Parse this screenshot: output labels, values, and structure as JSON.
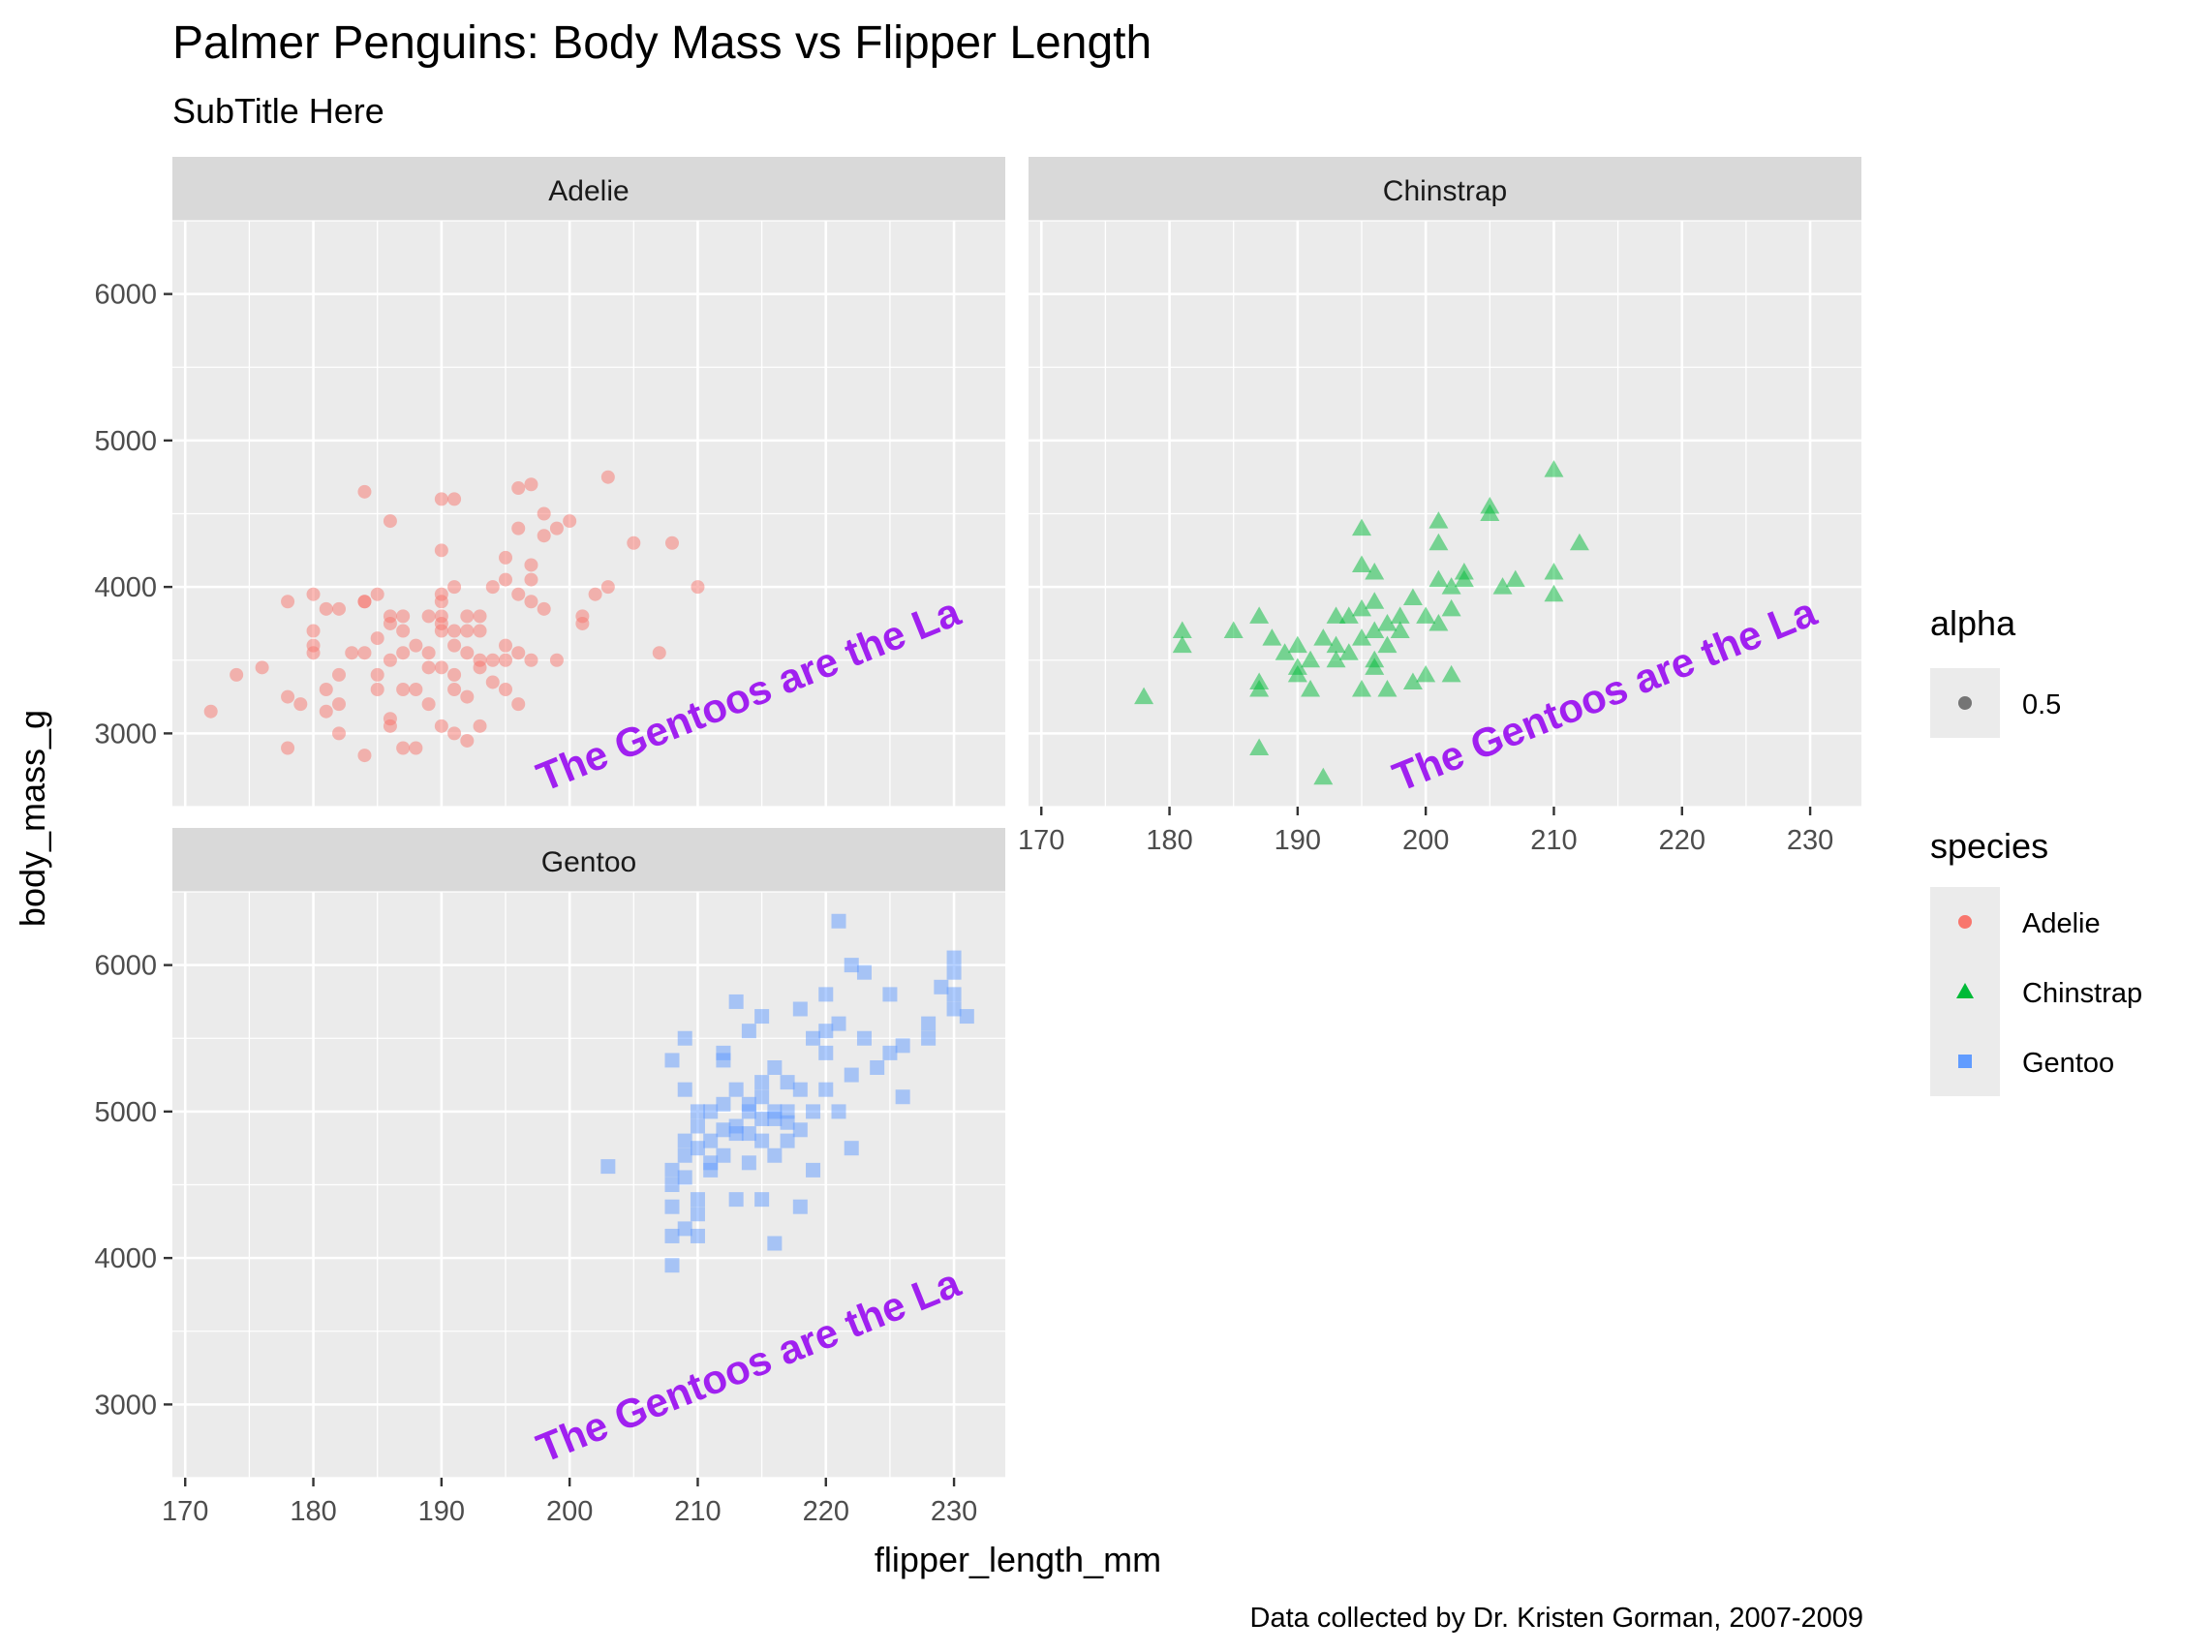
{
  "title": "Palmer Penguins: Body Mass vs Flipper Length",
  "subtitle": "SubTitle Here",
  "caption": "Data collected by Dr. Kristen Gorman, 2007-2009",
  "annotation": {
    "text": "The Gentoos are the La",
    "color": "#a020f0",
    "x": 198,
    "y": 2600,
    "angle_deg": 22
  },
  "legend": {
    "alpha": {
      "title": "alpha",
      "label": "0.5"
    },
    "species": {
      "title": "species",
      "items": [
        {
          "label": "Adelie",
          "color": "#f8766d",
          "shape": "circle"
        },
        {
          "label": "Chinstrap",
          "color": "#00ba38",
          "shape": "triangle"
        },
        {
          "label": "Gentoo",
          "color": "#619cff",
          "shape": "square"
        }
      ]
    }
  },
  "chart_data": {
    "type": "scatter",
    "xlabel": "flipper_length_mm",
    "ylabel": "body_mass_g",
    "xlim": [
      169,
      234
    ],
    "ylim": [
      2500,
      6500
    ],
    "x_ticks": [
      170,
      180,
      190,
      200,
      210,
      220,
      230
    ],
    "y_ticks": [
      3000,
      4000,
      5000,
      6000
    ],
    "point_alpha": 0.5,
    "grid": true,
    "legend_position": "right",
    "facets": [
      {
        "name": "Adelie",
        "color": "#f8766d",
        "shape": "circle",
        "points": [
          [
            172,
            3150
          ],
          [
            174,
            3400
          ],
          [
            176,
            3450
          ],
          [
            178,
            3250
          ],
          [
            178,
            3900
          ],
          [
            178,
            2900
          ],
          [
            179,
            3200
          ],
          [
            180,
            3550
          ],
          [
            180,
            3950
          ],
          [
            180,
            3700
          ],
          [
            180,
            3600
          ],
          [
            181,
            3300
          ],
          [
            181,
            3850
          ],
          [
            181,
            3150
          ],
          [
            182,
            3200
          ],
          [
            182,
            3850
          ],
          [
            182,
            3000
          ],
          [
            182,
            3400
          ],
          [
            183,
            3550
          ],
          [
            184,
            3550
          ],
          [
            184,
            3900
          ],
          [
            184,
            3900
          ],
          [
            184,
            4650
          ],
          [
            184,
            2850
          ],
          [
            185,
            3950
          ],
          [
            185,
            3400
          ],
          [
            185,
            3650
          ],
          [
            185,
            3300
          ],
          [
            186,
            3500
          ],
          [
            186,
            3750
          ],
          [
            186,
            3100
          ],
          [
            186,
            3800
          ],
          [
            186,
            3050
          ],
          [
            186,
            4450
          ],
          [
            187,
            3800
          ],
          [
            187,
            3550
          ],
          [
            187,
            3300
          ],
          [
            187,
            2900
          ],
          [
            187,
            3700
          ],
          [
            188,
            3300
          ],
          [
            188,
            2900
          ],
          [
            188,
            3600
          ],
          [
            189,
            3200
          ],
          [
            189,
            3800
          ],
          [
            189,
            3450
          ],
          [
            189,
            3550
          ],
          [
            190,
            3700
          ],
          [
            190,
            4250
          ],
          [
            190,
            3900
          ],
          [
            190,
            3750
          ],
          [
            190,
            3450
          ],
          [
            190,
            4600
          ],
          [
            190,
            3050
          ],
          [
            190,
            3950
          ],
          [
            190,
            3800
          ],
          [
            191,
            3700
          ],
          [
            191,
            3000
          ],
          [
            191,
            3400
          ],
          [
            191,
            3300
          ],
          [
            191,
            3600
          ],
          [
            191,
            4600
          ],
          [
            191,
            4000
          ],
          [
            192,
            3700
          ],
          [
            192,
            3800
          ],
          [
            192,
            3250
          ],
          [
            192,
            2950
          ],
          [
            192,
            3550
          ],
          [
            193,
            3500
          ],
          [
            193,
            3700
          ],
          [
            193,
            3050
          ],
          [
            193,
            3450
          ],
          [
            193,
            3800
          ],
          [
            194,
            3350
          ],
          [
            194,
            3500
          ],
          [
            194,
            4000
          ],
          [
            195,
            3600
          ],
          [
            195,
            4200
          ],
          [
            195,
            3300
          ],
          [
            195,
            3500
          ],
          [
            195,
            4050
          ],
          [
            196,
            4675
          ],
          [
            196,
            3950
          ],
          [
            196,
            4400
          ],
          [
            196,
            3550
          ],
          [
            196,
            3200
          ],
          [
            197,
            4700
          ],
          [
            197,
            4150
          ],
          [
            197,
            3500
          ],
          [
            197,
            4050
          ],
          [
            198,
            3850
          ],
          [
            198,
            4500
          ],
          [
            198,
            4350
          ],
          [
            199,
            4400
          ],
          [
            199,
            3500
          ],
          [
            200,
            4450
          ],
          [
            201,
            3800
          ],
          [
            201,
            3750
          ],
          [
            202,
            3950
          ],
          [
            203,
            4750
          ],
          [
            205,
            4300
          ],
          [
            208,
            4300
          ],
          [
            210,
            4000
          ],
          [
            207,
            3550
          ],
          [
            203,
            4000
          ],
          [
            197,
            3900
          ]
        ]
      },
      {
        "name": "Chinstrap",
        "color": "#00ba38",
        "shape": "triangle",
        "points": [
          [
            178,
            3250
          ],
          [
            181,
            3700
          ],
          [
            181,
            3600
          ],
          [
            185,
            3700
          ],
          [
            187,
            3800
          ],
          [
            187,
            3350
          ],
          [
            187,
            2900
          ],
          [
            187,
            3300
          ],
          [
            188,
            3650
          ],
          [
            189,
            3550
          ],
          [
            190,
            3600
          ],
          [
            190,
            3450
          ],
          [
            190,
            3400
          ],
          [
            191,
            3500
          ],
          [
            191,
            3300
          ],
          [
            192,
            2700
          ],
          [
            192,
            3650
          ],
          [
            193,
            3800
          ],
          [
            193,
            3600
          ],
          [
            193,
            3500
          ],
          [
            194,
            3550
          ],
          [
            194,
            3800
          ],
          [
            195,
            4400
          ],
          [
            195,
            3650
          ],
          [
            195,
            4150
          ],
          [
            195,
            3300
          ],
          [
            196,
            3500
          ],
          [
            196,
            3700
          ],
          [
            196,
            3900
          ],
          [
            196,
            3450
          ],
          [
            197,
            3750
          ],
          [
            197,
            3300
          ],
          [
            198,
            3800
          ],
          [
            198,
            3700
          ],
          [
            199,
            3350
          ],
          [
            199,
            3925
          ],
          [
            200,
            3400
          ],
          [
            201,
            4300
          ],
          [
            201,
            4450
          ],
          [
            201,
            4050
          ],
          [
            201,
            3750
          ],
          [
            202,
            3400
          ],
          [
            202,
            4000
          ],
          [
            203,
            4100
          ],
          [
            205,
            4550
          ],
          [
            205,
            4500
          ],
          [
            206,
            4000
          ],
          [
            207,
            4050
          ],
          [
            210,
            4100
          ],
          [
            210,
            4800
          ],
          [
            210,
            3950
          ],
          [
            212,
            4300
          ],
          [
            200,
            3800
          ],
          [
            197,
            3600
          ],
          [
            202,
            3850
          ],
          [
            203,
            4050
          ],
          [
            196,
            4100
          ],
          [
            195,
            3850
          ]
        ]
      },
      {
        "name": "Gentoo",
        "color": "#619cff",
        "shape": "square",
        "points": [
          [
            203,
            4625
          ],
          [
            208,
            4150
          ],
          [
            208,
            4350
          ],
          [
            208,
            4500
          ],
          [
            208,
            4600
          ],
          [
            208,
            3950
          ],
          [
            208,
            5350
          ],
          [
            209,
            4200
          ],
          [
            209,
            4800
          ],
          [
            209,
            4700
          ],
          [
            209,
            5500
          ],
          [
            209,
            4550
          ],
          [
            210,
            4400
          ],
          [
            210,
            4900
          ],
          [
            210,
            4750
          ],
          [
            210,
            5000
          ],
          [
            210,
            4150
          ],
          [
            210,
            4300
          ],
          [
            211,
            4800
          ],
          [
            211,
            4600
          ],
          [
            211,
            5000
          ],
          [
            212,
            4875
          ],
          [
            212,
            4700
          ],
          [
            212,
            5050
          ],
          [
            213,
            4900
          ],
          [
            213,
            4400
          ],
          [
            213,
            5750
          ],
          [
            213,
            4850
          ],
          [
            214,
            4650
          ],
          [
            214,
            4850
          ],
          [
            214,
            5000
          ],
          [
            214,
            5550
          ],
          [
            215,
            4400
          ],
          [
            215,
            4800
          ],
          [
            215,
            5100
          ],
          [
            215,
            5650
          ],
          [
            215,
            4950
          ],
          [
            216,
            4700
          ],
          [
            216,
            4100
          ],
          [
            216,
            5000
          ],
          [
            216,
            5300
          ],
          [
            217,
            4800
          ],
          [
            217,
            5000
          ],
          [
            217,
            5200
          ],
          [
            218,
            5700
          ],
          [
            218,
            4350
          ],
          [
            219,
            5500
          ],
          [
            219,
            5000
          ],
          [
            220,
            5150
          ],
          [
            220,
            5800
          ],
          [
            220,
            5400
          ],
          [
            221,
            6300
          ],
          [
            221,
            5600
          ],
          [
            221,
            5000
          ],
          [
            222,
            5250
          ],
          [
            222,
            6000
          ],
          [
            223,
            5950
          ],
          [
            223,
            5500
          ],
          [
            224,
            5300
          ],
          [
            225,
            5800
          ],
          [
            225,
            5400
          ],
          [
            226,
            5100
          ],
          [
            228,
            5600
          ],
          [
            228,
            5500
          ],
          [
            229,
            5850
          ],
          [
            230,
            5800
          ],
          [
            230,
            5950
          ],
          [
            230,
            5700
          ],
          [
            230,
            6050
          ],
          [
            231,
            5650
          ],
          [
            212,
            5400
          ],
          [
            216,
            4950
          ],
          [
            218,
            5150
          ],
          [
            211,
            4650
          ],
          [
            209,
            5150
          ],
          [
            214,
            5050
          ],
          [
            219,
            4600
          ],
          [
            222,
            4750
          ],
          [
            226,
            5450
          ],
          [
            213,
            5150
          ],
          [
            217,
            4925
          ],
          [
            220,
            5550
          ],
          [
            215,
            5200
          ],
          [
            212,
            5350
          ],
          [
            218,
            4875
          ]
        ]
      }
    ]
  }
}
